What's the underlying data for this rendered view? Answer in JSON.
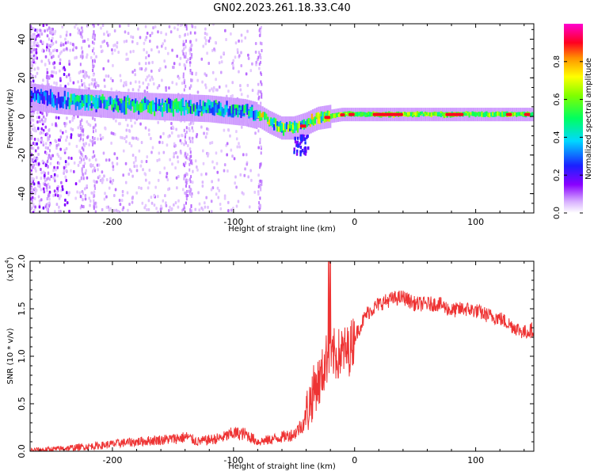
{
  "title": "GN02.2023.261.18.33.C40",
  "chart_data": [
    {
      "type": "heatmap",
      "xlabel": "Height of straight line (km)",
      "ylabel": "Frequency (Hz)",
      "xlim": [
        -268,
        148
      ],
      "ylim": [
        -50,
        48
      ],
      "x_ticks": [
        -200,
        -100,
        0,
        100
      ],
      "x_tick_labels": [
        "-200",
        "-100",
        "0",
        "100"
      ],
      "y_ticks": [
        -40,
        -20,
        0,
        20,
        40
      ],
      "y_tick_labels": [
        "-40",
        "-20",
        "0",
        "20",
        "40"
      ],
      "colorbar": {
        "label": "Normalized spectral amplitude",
        "range": [
          0,
          1
        ],
        "ticks": [
          0,
          0.2,
          0.4,
          0.6,
          0.8
        ],
        "tick_labels": [
          "0.0",
          "0.2",
          "0.4",
          "0.6",
          "0.8"
        ]
      },
      "ridge": {
        "x": [
          -265,
          -240,
          -200,
          -160,
          -120,
          -90,
          -78,
          -70,
          -60,
          -50,
          -40,
          -30,
          -20,
          -10,
          0,
          20,
          40,
          60,
          80,
          100,
          120,
          148
        ],
        "y": [
          10,
          8,
          6,
          5,
          4,
          2,
          0,
          -3,
          -6,
          -6,
          -4,
          -1,
          0,
          1,
          1,
          1,
          1,
          1,
          1,
          1,
          1,
          1
        ]
      }
    },
    {
      "type": "line",
      "xlabel": "Height of straight line (km)",
      "ylabel": "SNR (10 * v/v)",
      "y_multiplier_label": "(x10",
      "y_multiplier_exp": "4",
      "y_multiplier_close": ")",
      "xlim": [
        -268,
        148
      ],
      "ylim": [
        0,
        2.0
      ],
      "x_ticks": [
        -200,
        -100,
        0,
        100
      ],
      "x_tick_labels": [
        "-200",
        "-100",
        "0",
        "100"
      ],
      "y_ticks": [
        0,
        0.5,
        1.0,
        1.5,
        2.0
      ],
      "y_tick_labels": [
        "0.0",
        "0.5",
        "1.0",
        "1.5",
        "2.0"
      ],
      "series": [
        {
          "color": "#ee3333",
          "x": [
            -268,
            -250,
            -230,
            -210,
            -190,
            -170,
            -150,
            -138,
            -130,
            -110,
            -100,
            -90,
            -80,
            -70,
            -60,
            -50,
            -42,
            -36,
            -32,
            -28,
            -24,
            -20,
            -15,
            -10,
            -5,
            0,
            10,
            20,
            30,
            40,
            50,
            60,
            70,
            80,
            90,
            100,
            110,
            120,
            130,
            140,
            148
          ],
          "y": [
            0.01,
            0.02,
            0.04,
            0.06,
            0.09,
            0.11,
            0.13,
            0.15,
            0.1,
            0.14,
            0.19,
            0.18,
            0.1,
            0.12,
            0.15,
            0.18,
            0.3,
            0.55,
            0.7,
            0.75,
            0.95,
            1.05,
            1.0,
            1.05,
            1.05,
            1.2,
            1.45,
            1.55,
            1.6,
            1.62,
            1.55,
            1.55,
            1.55,
            1.48,
            1.5,
            1.48,
            1.43,
            1.4,
            1.32,
            1.25,
            1.28
          ]
        }
      ]
    }
  ]
}
